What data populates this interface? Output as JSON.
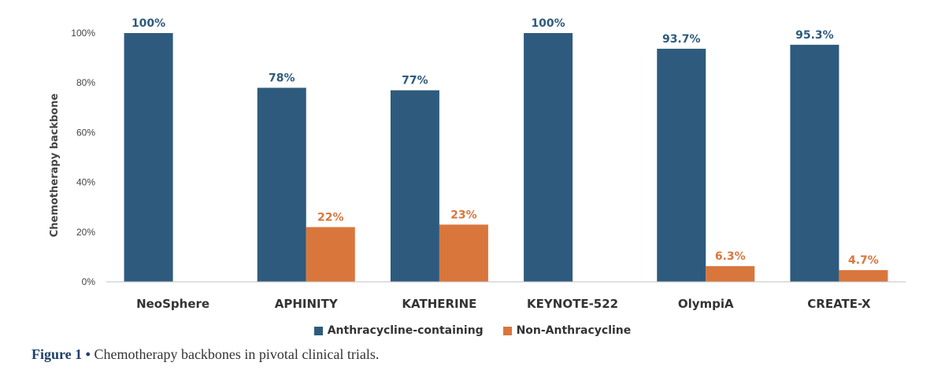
{
  "chart_data": {
    "type": "bar",
    "ylabel": "Chemotherapy backbone",
    "ylim": [
      0,
      100
    ],
    "yticks": [
      "0%",
      "20%",
      "40%",
      "60%",
      "80%",
      "100%"
    ],
    "ytick_values": [
      0,
      20,
      40,
      60,
      80,
      100
    ],
    "categories": [
      "NeoSphere",
      "APHINITY",
      "KATHERINE",
      "KEYNOTE-522",
      "OlympiA",
      "CREATE-X"
    ],
    "series": [
      {
        "name": "Anthracycline-containing",
        "color": "#2e5b7d",
        "values": [
          100,
          78,
          77,
          100,
          93.7,
          95.3
        ],
        "labels": [
          "100%",
          "78%",
          "77%",
          "100%",
          "93.7%",
          "95.3%"
        ]
      },
      {
        "name": "Non-Anthracycline",
        "color": "#d9763c",
        "values": [
          null,
          22,
          23,
          null,
          6.3,
          4.7
        ],
        "labels": [
          "",
          "22%",
          "23%",
          "",
          "6.3%",
          "4.7%"
        ]
      }
    ],
    "grid": false,
    "legend_position": "bottom-center"
  },
  "caption": {
    "figure_label": "Figure 1",
    "bullet": "•",
    "text": "Chemotherapy backbones in pivotal clinical trials."
  }
}
